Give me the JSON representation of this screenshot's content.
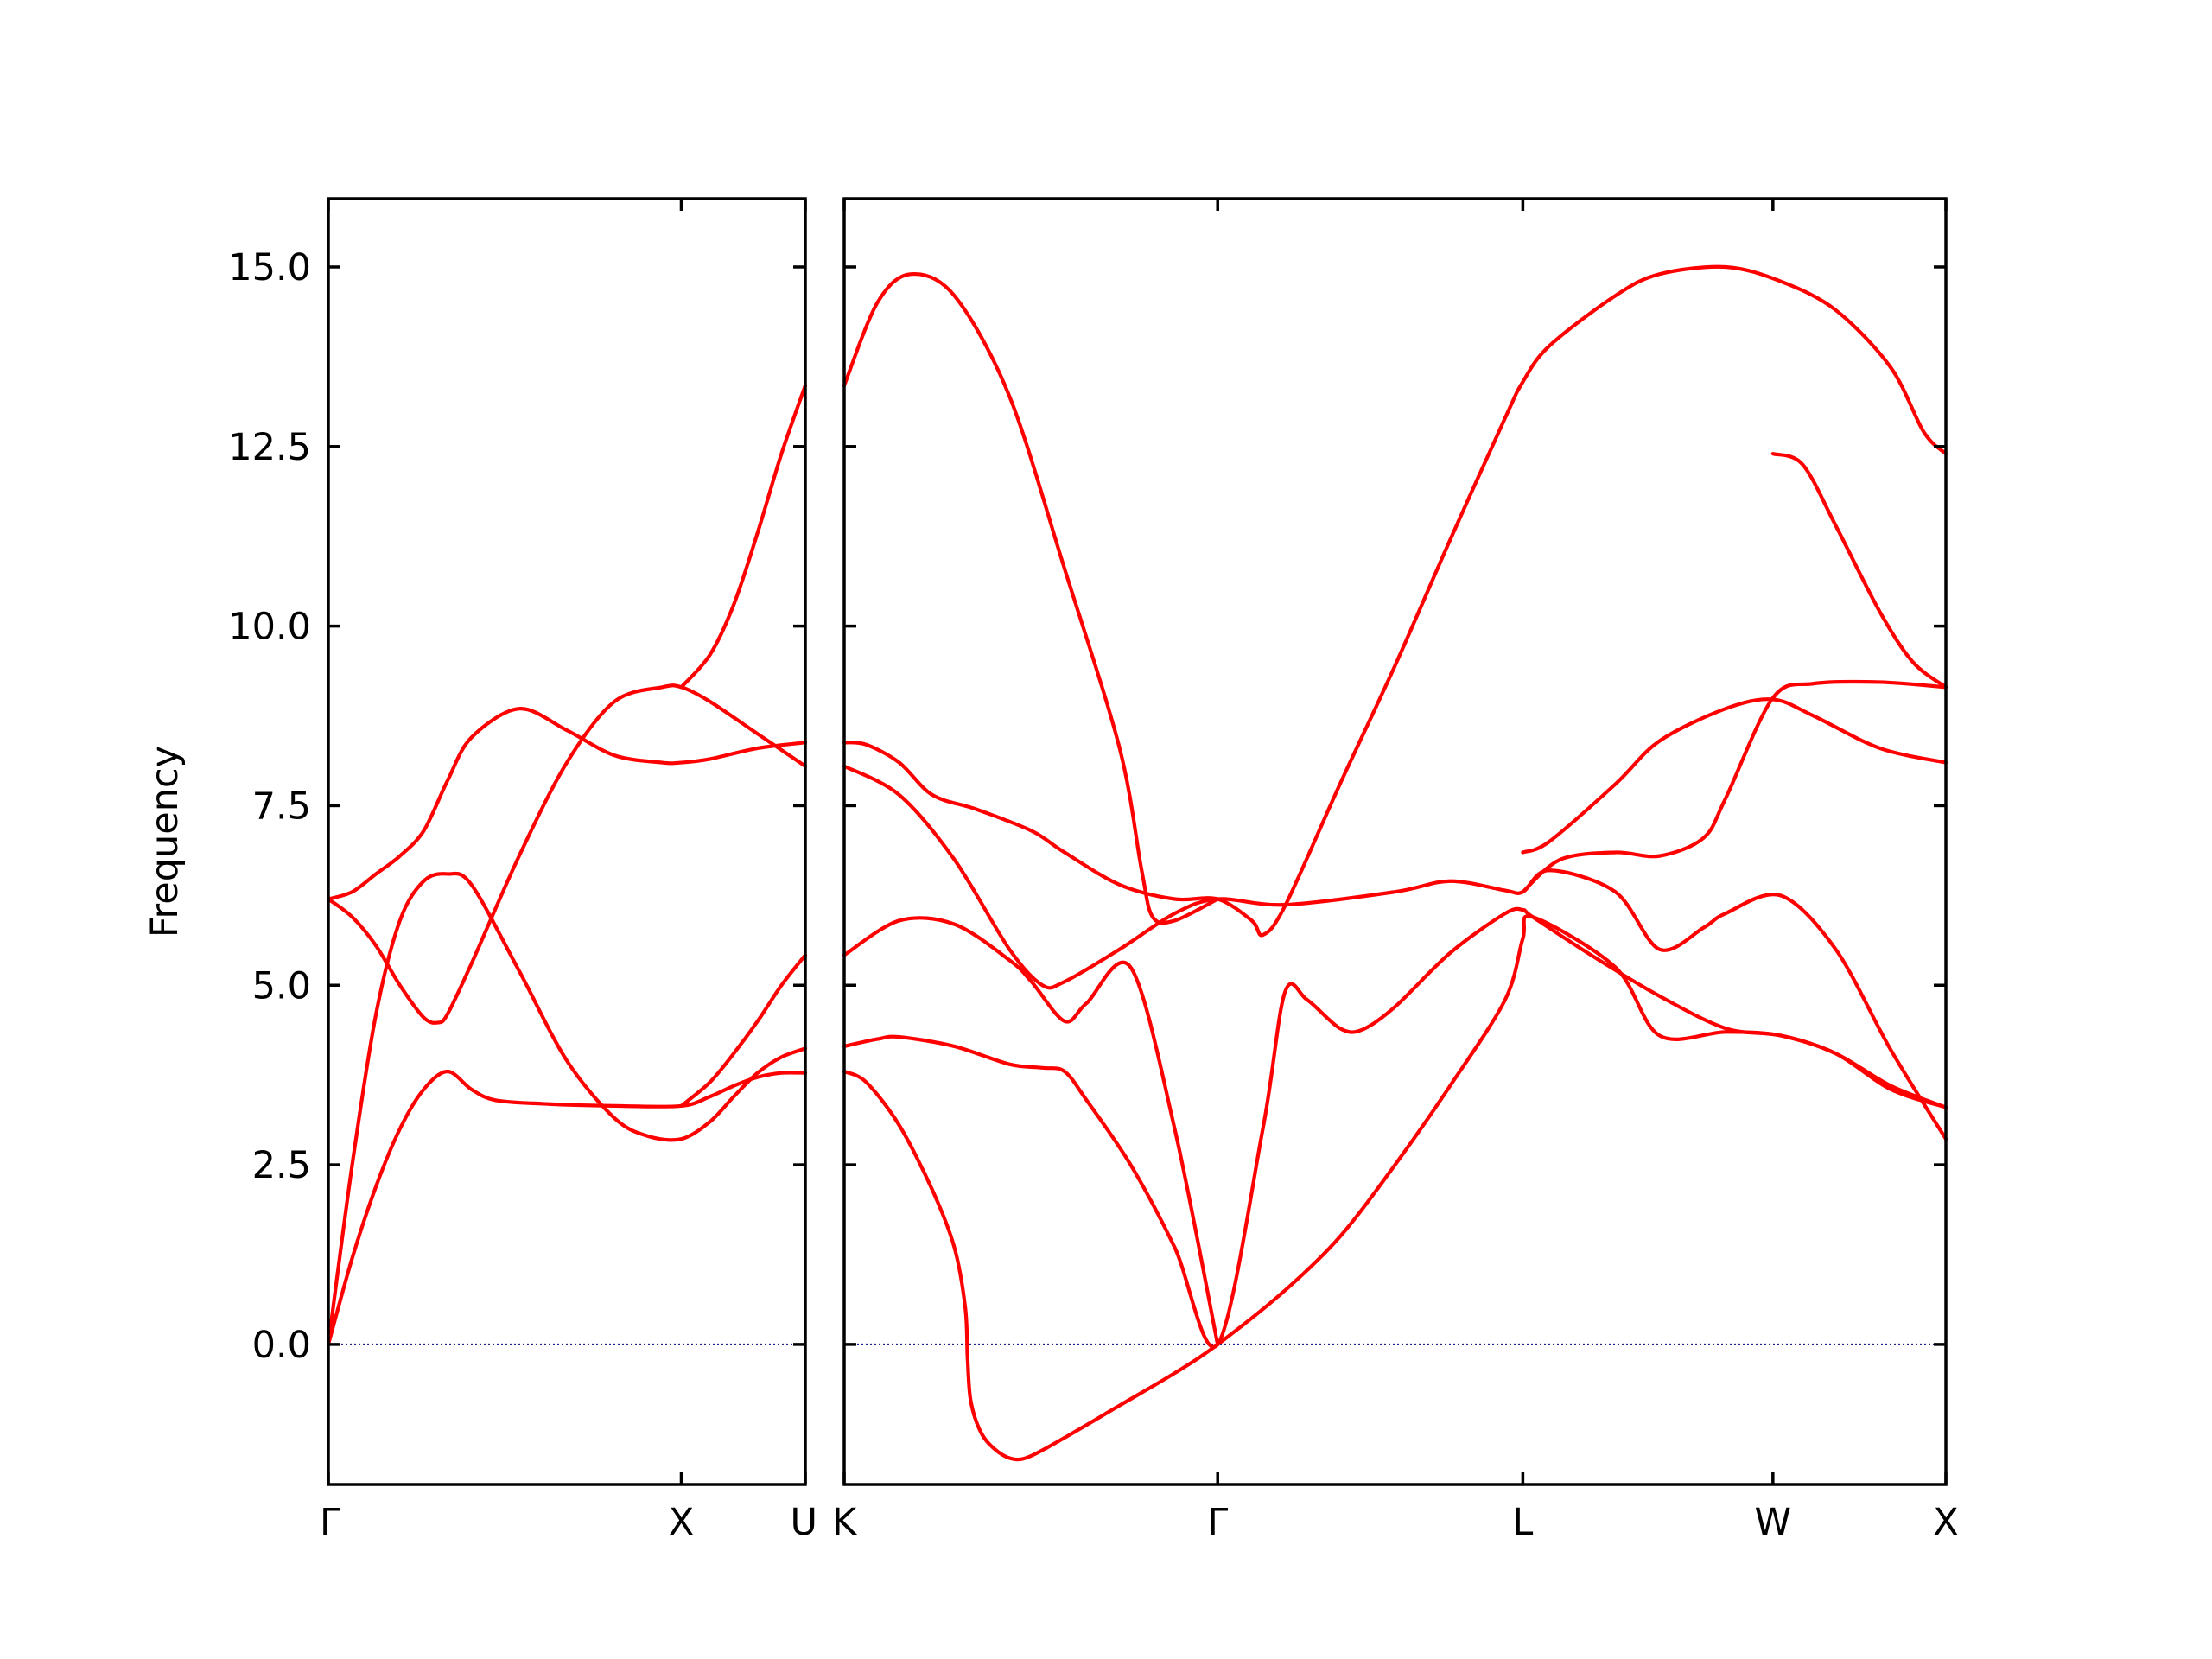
{
  "chart_data": {
    "type": "line",
    "ylabel": "Frequency",
    "ylim": [
      -1.95,
      15.95
    ],
    "yticks": [
      "0.0",
      "2.5",
      "5.0",
      "7.5",
      "10.0",
      "12.5",
      "15.0"
    ],
    "yticks_values": [
      0,
      2.5,
      5,
      7.5,
      10,
      12.5,
      15
    ],
    "colors": {
      "bands": "#ff0000",
      "zero_line": "#00008b",
      "frame": "#000000"
    },
    "grid": false,
    "zero_line": {
      "y": 0,
      "style": "dotted"
    },
    "panels": [
      {
        "name": "panel-1",
        "xlim": [
          0,
          1
        ],
        "xticks": [
          {
            "x": 0.0,
            "label": "Γ"
          },
          {
            "x": 0.74,
            "label": "X"
          },
          {
            "x": 1.0,
            "label": "U"
          }
        ],
        "bands": [
          [
            [
              0,
              0
            ],
            [
              0.05,
              1.2
            ],
            [
              0.1,
              2.2
            ],
            [
              0.15,
              3.0
            ],
            [
              0.2,
              3.55
            ],
            [
              0.25,
              3.8
            ],
            [
              0.3,
              3.55
            ],
            [
              0.35,
              3.4
            ],
            [
              0.45,
              3.35
            ],
            [
              0.6,
              3.32
            ],
            [
              0.74,
              3.32
            ],
            [
              0.8,
              3.45
            ],
            [
              0.85,
              3.6
            ],
            [
              0.9,
              3.72
            ],
            [
              0.95,
              3.78
            ],
            [
              1.0,
              3.78
            ]
          ],
          [
            [
              0,
              0
            ],
            [
              0.05,
              2.5
            ],
            [
              0.1,
              4.6
            ],
            [
              0.15,
              5.9
            ],
            [
              0.2,
              6.45
            ],
            [
              0.25,
              6.55
            ],
            [
              0.3,
              6.4
            ],
            [
              0.4,
              5.2
            ],
            [
              0.5,
              3.95
            ],
            [
              0.6,
              3.15
            ],
            [
              0.67,
              2.9
            ],
            [
              0.74,
              2.86
            ],
            [
              0.8,
              3.1
            ],
            [
              0.85,
              3.45
            ],
            [
              0.9,
              3.78
            ],
            [
              0.95,
              4.0
            ],
            [
              1.0,
              4.12
            ]
          ],
          [
            [
              0,
              6.2
            ],
            [
              0.05,
              5.95
            ],
            [
              0.1,
              5.55
            ],
            [
              0.15,
              5.0
            ],
            [
              0.2,
              4.55
            ],
            [
              0.23,
              4.48
            ],
            [
              0.25,
              4.6
            ],
            [
              0.3,
              5.3
            ],
            [
              0.4,
              6.8
            ],
            [
              0.5,
              8.1
            ],
            [
              0.6,
              8.95
            ],
            [
              0.7,
              9.15
            ],
            [
              0.74,
              9.15
            ],
            [
              0.8,
              8.95
            ],
            [
              0.9,
              8.5
            ],
            [
              1.0,
              8.05
            ]
          ],
          [
            [
              0,
              6.2
            ],
            [
              0.05,
              6.3
            ],
            [
              0.1,
              6.55
            ],
            [
              0.15,
              6.8
            ],
            [
              0.2,
              7.15
            ],
            [
              0.25,
              7.85
            ],
            [
              0.3,
              8.45
            ],
            [
              0.4,
              8.85
            ],
            [
              0.5,
              8.55
            ],
            [
              0.6,
              8.2
            ],
            [
              0.7,
              8.1
            ],
            [
              0.74,
              8.1
            ],
            [
              0.8,
              8.15
            ],
            [
              0.9,
              8.3
            ],
            [
              1.0,
              8.38
            ]
          ],
          [
            [
              0.74,
              3.32
            ],
            [
              0.8,
              3.65
            ],
            [
              0.85,
              4.05
            ],
            [
              0.9,
              4.5
            ],
            [
              0.95,
              5.0
            ],
            [
              1.0,
              5.42
            ]
          ],
          [
            [
              0.74,
              9.15
            ],
            [
              0.8,
              9.6
            ],
            [
              0.85,
              10.3
            ],
            [
              0.9,
              11.3
            ],
            [
              0.95,
              12.4
            ],
            [
              1.0,
              13.35
            ]
          ]
        ]
      },
      {
        "name": "panel-2",
        "xlim": [
          0,
          1
        ],
        "xticks": [
          {
            "x": 0.0,
            "label": "K"
          },
          {
            "x": 0.339,
            "label": "Γ"
          },
          {
            "x": 0.616,
            "label": "L"
          },
          {
            "x": 0.843,
            "label": "W"
          },
          {
            "x": 1.0,
            "label": "X"
          }
        ],
        "bands": [
          [
            [
              0,
              3.8
            ],
            [
              0.02,
              3.65
            ],
            [
              0.05,
              3.05
            ],
            [
              0.08,
              2.15
            ],
            [
              0.1,
              1.35
            ],
            [
              0.11,
              0.5
            ],
            [
              0.112,
              -0.2
            ],
            [
              0.115,
              -0.8
            ],
            [
              0.125,
              -1.25
            ],
            [
              0.14,
              -1.5
            ],
            [
              0.155,
              -1.6
            ],
            [
              0.17,
              -1.55
            ],
            [
              0.2,
              -1.3
            ],
            [
              0.25,
              -0.85
            ],
            [
              0.3,
              -0.4
            ],
            [
              0.339,
              0
            ],
            [
              0.4,
              0.75
            ],
            [
              0.45,
              1.5
            ],
            [
              0.5,
              2.5
            ],
            [
              0.55,
              3.6
            ],
            [
              0.6,
              4.8
            ],
            [
              0.616,
              5.65
            ],
            [
              0.625,
              5.95
            ],
            [
              0.7,
              5.25
            ],
            [
              0.74,
              4.3
            ],
            [
              0.8,
              4.35
            ],
            [
              0.85,
              4.3
            ],
            [
              0.9,
              4.05
            ],
            [
              0.95,
              3.6
            ],
            [
              1.0,
              3.3
            ]
          ],
          [
            [
              0,
              4.15
            ],
            [
              0.03,
              4.25
            ],
            [
              0.05,
              4.28
            ],
            [
              0.1,
              4.15
            ],
            [
              0.15,
              3.9
            ],
            [
              0.18,
              3.85
            ],
            [
              0.2,
              3.8
            ],
            [
              0.22,
              3.4
            ],
            [
              0.26,
              2.5
            ],
            [
              0.3,
              1.35
            ],
            [
              0.339,
              0
            ],
            [
              0.38,
              3.0
            ],
            [
              0.4,
              4.9
            ],
            [
              0.42,
              4.8
            ],
            [
              0.45,
              4.4
            ],
            [
              0.47,
              4.38
            ],
            [
              0.5,
              4.7
            ],
            [
              0.55,
              5.45
            ],
            [
              0.6,
              6.0
            ],
            [
              0.616,
              6.05
            ],
            [
              0.625,
              5.95
            ],
            [
              0.68,
              5.4
            ],
            [
              0.74,
              4.85
            ],
            [
              0.8,
              4.4
            ],
            [
              0.85,
              4.3
            ],
            [
              0.9,
              4.05
            ],
            [
              0.95,
              3.55
            ],
            [
              1.0,
              3.3
            ]
          ],
          [
            [
              0,
              5.42
            ],
            [
              0.05,
              5.9
            ],
            [
              0.1,
              5.85
            ],
            [
              0.15,
              5.35
            ],
            [
              0.17,
              5.05
            ],
            [
              0.2,
              4.5
            ],
            [
              0.22,
              4.75
            ],
            [
              0.26,
              5.25
            ],
            [
              0.3,
              3.0
            ],
            [
              0.339,
              0
            ]
          ],
          [
            [
              0,
              8.05
            ],
            [
              0.05,
              7.65
            ],
            [
              0.1,
              6.75
            ],
            [
              0.15,
              5.5
            ],
            [
              0.18,
              5.0
            ],
            [
              0.2,
              5.05
            ],
            [
              0.25,
              5.5
            ],
            [
              0.3,
              6.0
            ],
            [
              0.339,
              6.2
            ],
            [
              0.4,
              6.12
            ],
            [
              0.5,
              6.3
            ],
            [
              0.55,
              6.45
            ],
            [
              0.6,
              6.32
            ],
            [
              0.616,
              6.3
            ],
            [
              0.64,
              6.6
            ],
            [
              0.7,
              6.3
            ],
            [
              0.74,
              5.5
            ],
            [
              0.78,
              5.8
            ],
            [
              0.8,
              6.0
            ],
            [
              0.85,
              6.25
            ],
            [
              0.9,
              5.5
            ],
            [
              0.95,
              4.1
            ],
            [
              1.0,
              2.86
            ]
          ],
          [
            [
              0,
              8.38
            ],
            [
              0.02,
              8.35
            ],
            [
              0.05,
              8.1
            ],
            [
              0.08,
              7.65
            ],
            [
              0.12,
              7.45
            ],
            [
              0.17,
              7.15
            ],
            [
              0.2,
              6.85
            ],
            [
              0.25,
              6.4
            ],
            [
              0.3,
              6.2
            ],
            [
              0.339,
              6.2
            ],
            [
              0.37,
              5.9
            ],
            [
              0.38,
              5.7
            ],
            [
              0.4,
              6.1
            ],
            [
              0.45,
              7.8
            ],
            [
              0.5,
              9.45
            ],
            [
              0.55,
              11.2
            ],
            [
              0.6,
              12.9
            ],
            [
              0.616,
              13.4
            ],
            [
              0.64,
              13.9
            ],
            [
              0.7,
              14.6
            ],
            [
              0.74,
              14.9
            ],
            [
              0.8,
              15.0
            ],
            [
              0.85,
              14.8
            ],
            [
              0.9,
              14.4
            ],
            [
              0.95,
              13.6
            ],
            [
              0.98,
              12.7
            ],
            [
              1.0,
              12.4
            ]
          ],
          [
            [
              0,
              13.35
            ],
            [
              0.03,
              14.5
            ],
            [
              0.06,
              14.9
            ],
            [
              0.1,
              14.6
            ],
            [
              0.15,
              13.2
            ],
            [
              0.2,
              10.8
            ],
            [
              0.25,
              8.3
            ],
            [
              0.27,
              6.6
            ],
            [
              0.28,
              5.95
            ],
            [
              0.3,
              5.9
            ],
            [
              0.339,
              6.2
            ]
          ],
          [
            [
              0.616,
              6.85
            ],
            [
              0.64,
              7.0
            ],
            [
              0.7,
              7.8
            ],
            [
              0.74,
              8.4
            ],
            [
              0.8,
              8.85
            ],
            [
              0.843,
              8.98
            ],
            [
              0.88,
              8.75
            ],
            [
              0.94,
              8.3
            ],
            [
              1.0,
              8.1
            ]
          ],
          [
            [
              0.616,
              6.3
            ],
            [
              0.65,
              6.75
            ],
            [
              0.7,
              6.85
            ],
            [
              0.74,
              6.8
            ],
            [
              0.78,
              7.05
            ],
            [
              0.8,
              7.6
            ],
            [
              0.843,
              9.0
            ],
            [
              0.88,
              9.2
            ],
            [
              0.94,
              9.22
            ],
            [
              1.0,
              9.15
            ]
          ],
          [
            [
              0.843,
              12.4
            ],
            [
              0.87,
              12.25
            ],
            [
              0.9,
              11.4
            ],
            [
              0.94,
              10.2
            ],
            [
              0.97,
              9.5
            ],
            [
              1.0,
              9.15
            ]
          ]
        ]
      }
    ]
  }
}
